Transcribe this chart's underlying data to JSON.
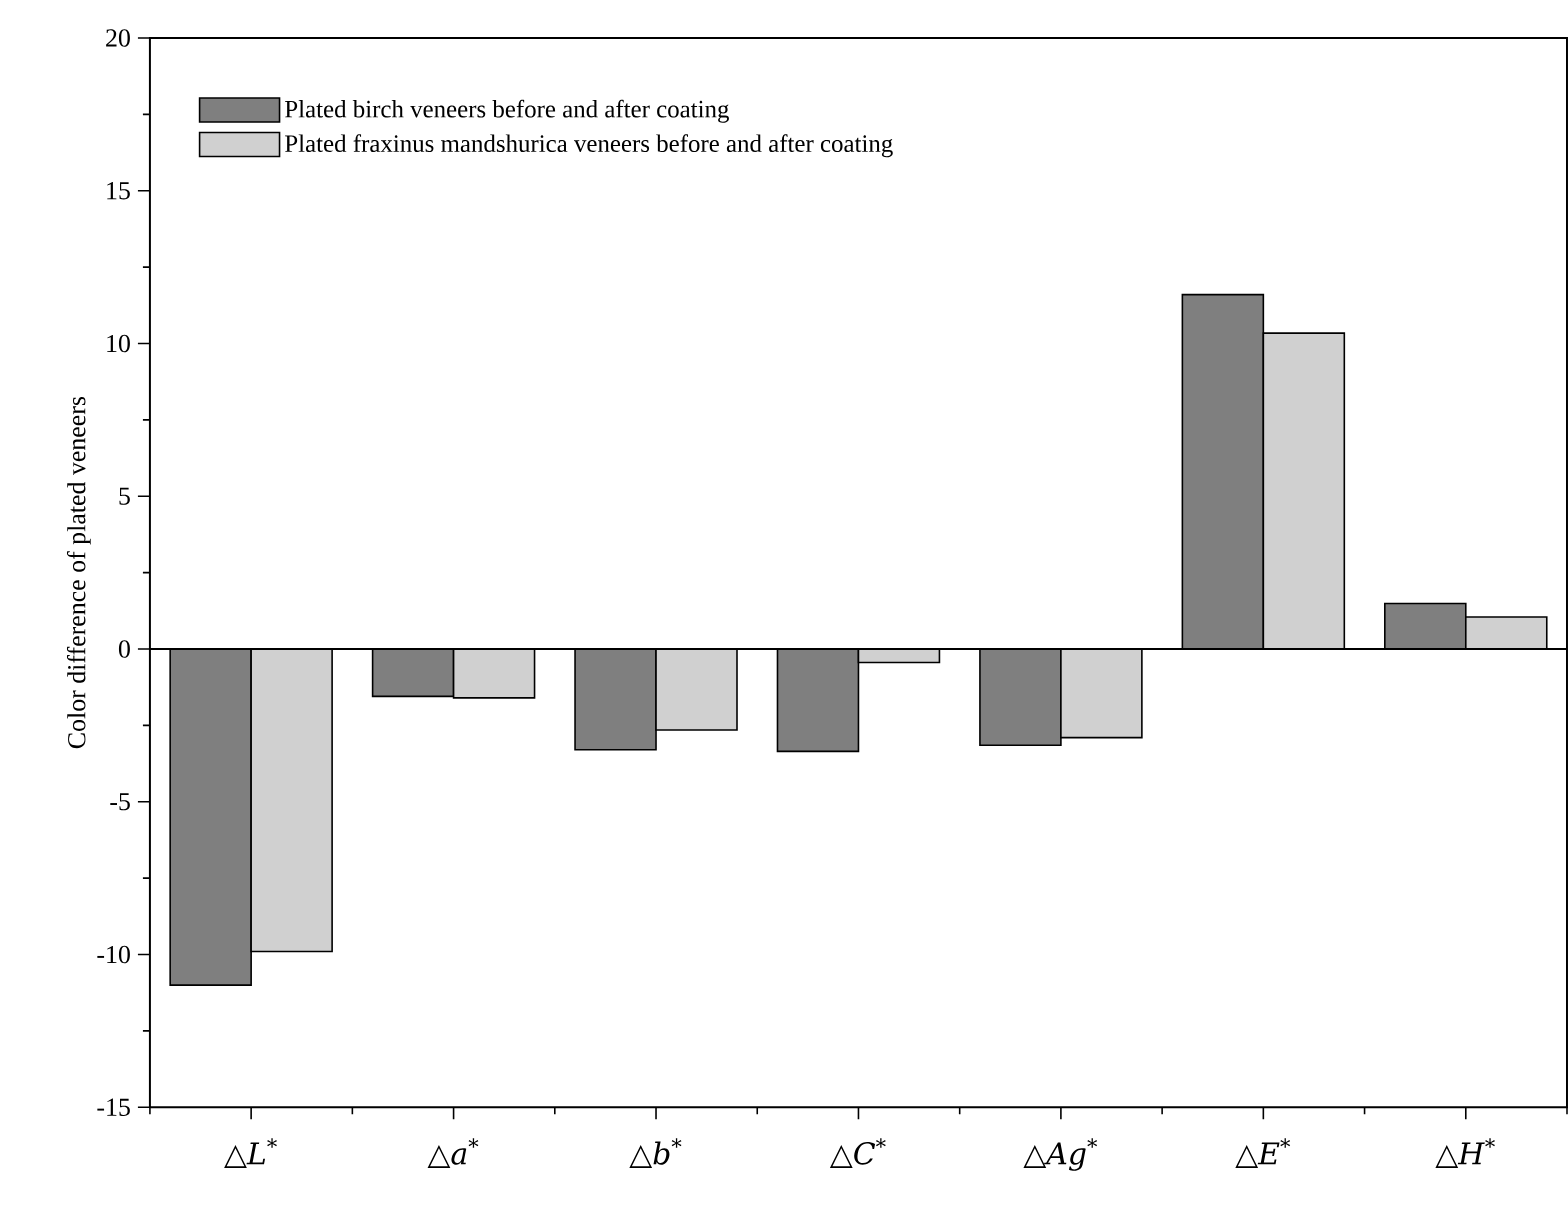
{
  "chart_data": {
    "type": "bar",
    "ylabel": "Color difference of plated veneers",
    "categories": [
      "△*L*$^{*}$",
      "△*a*$^{*}$",
      "△*b*$^{*}$",
      "△*C*$^{*}$",
      "△*Ag*$^{*}$",
      "△*E*$^{*}$",
      "△*H*$^{*}$"
    ],
    "series": [
      {
        "name": "Plated birch veneers before and after coating",
        "color": "#7f7f7f",
        "values": [
          -11.0,
          -1.55,
          -3.3,
          -3.35,
          -3.15,
          11.6,
          1.49
        ]
      },
      {
        "name": "Plated fraxinus mandshurica veneers before and after coating",
        "color": "#d0d0d0",
        "values": [
          -9.9,
          -1.6,
          -2.65,
          -0.44,
          -2.9,
          10.34,
          1.05
        ]
      }
    ],
    "ylim": [
      -15,
      20
    ],
    "yticks": [
      -15,
      -10,
      -5,
      0,
      5,
      10,
      15,
      20
    ],
    "legend": "top left"
  }
}
